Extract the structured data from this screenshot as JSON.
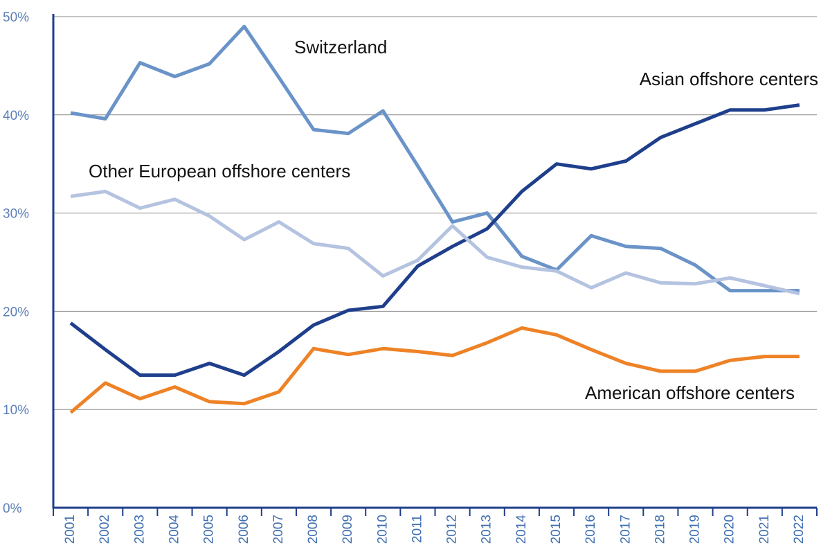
{
  "chart_data": {
    "type": "line",
    "categories": [
      "2001",
      "2002",
      "2003",
      "2004",
      "2005",
      "2006",
      "2007",
      "2008",
      "2009",
      "2010",
      "2011",
      "2012",
      "2013",
      "2014",
      "2015",
      "2016",
      "2017",
      "2018",
      "2019",
      "2020",
      "2021",
      "2022"
    ],
    "ylim": [
      0,
      50
    ],
    "yticks": [
      {
        "value": 0,
        "label": "0%"
      },
      {
        "value": 10,
        "label": "10%"
      },
      {
        "value": 20,
        "label": "20%"
      },
      {
        "value": 30,
        "label": "30%"
      },
      {
        "value": 40,
        "label": "40%"
      },
      {
        "value": 50,
        "label": "50%"
      }
    ],
    "grid": true,
    "series": [
      {
        "name": "Switzerland",
        "color": "#6a93c8",
        "values": [
          40.2,
          39.6,
          45.3,
          43.9,
          45.2,
          49.0,
          43.8,
          38.5,
          38.1,
          40.4,
          34.8,
          29.1,
          30.0,
          25.6,
          24.2,
          27.7,
          26.6,
          26.4,
          24.7,
          22.1,
          22.1,
          22.1
        ]
      },
      {
        "name": "Asian offshore centers",
        "color": "#1f3f8c",
        "values": [
          18.8,
          16.1,
          13.5,
          13.5,
          14.7,
          13.5,
          15.9,
          18.6,
          20.1,
          20.5,
          24.6,
          26.6,
          28.4,
          32.2,
          35.0,
          34.5,
          35.3,
          37.7,
          39.1,
          40.5,
          40.5,
          41.0
        ]
      },
      {
        "name": "Other European offshore centers",
        "color": "#b4c3e0",
        "values": [
          31.7,
          32.2,
          30.5,
          31.4,
          29.7,
          27.3,
          29.1,
          26.9,
          26.4,
          23.6,
          25.2,
          28.7,
          25.5,
          24.5,
          24.1,
          22.4,
          23.9,
          22.9,
          22.8,
          23.4,
          22.6,
          21.8
        ]
      },
      {
        "name": "American offshore centers",
        "color": "#ee8226",
        "values": [
          9.7,
          12.7,
          11.1,
          12.3,
          10.8,
          10.6,
          11.8,
          16.2,
          15.6,
          16.2,
          15.9,
          15.5,
          16.8,
          18.3,
          17.6,
          16.1,
          14.7,
          13.9,
          13.9,
          15.0,
          15.4,
          15.4
        ]
      }
    ]
  }
}
